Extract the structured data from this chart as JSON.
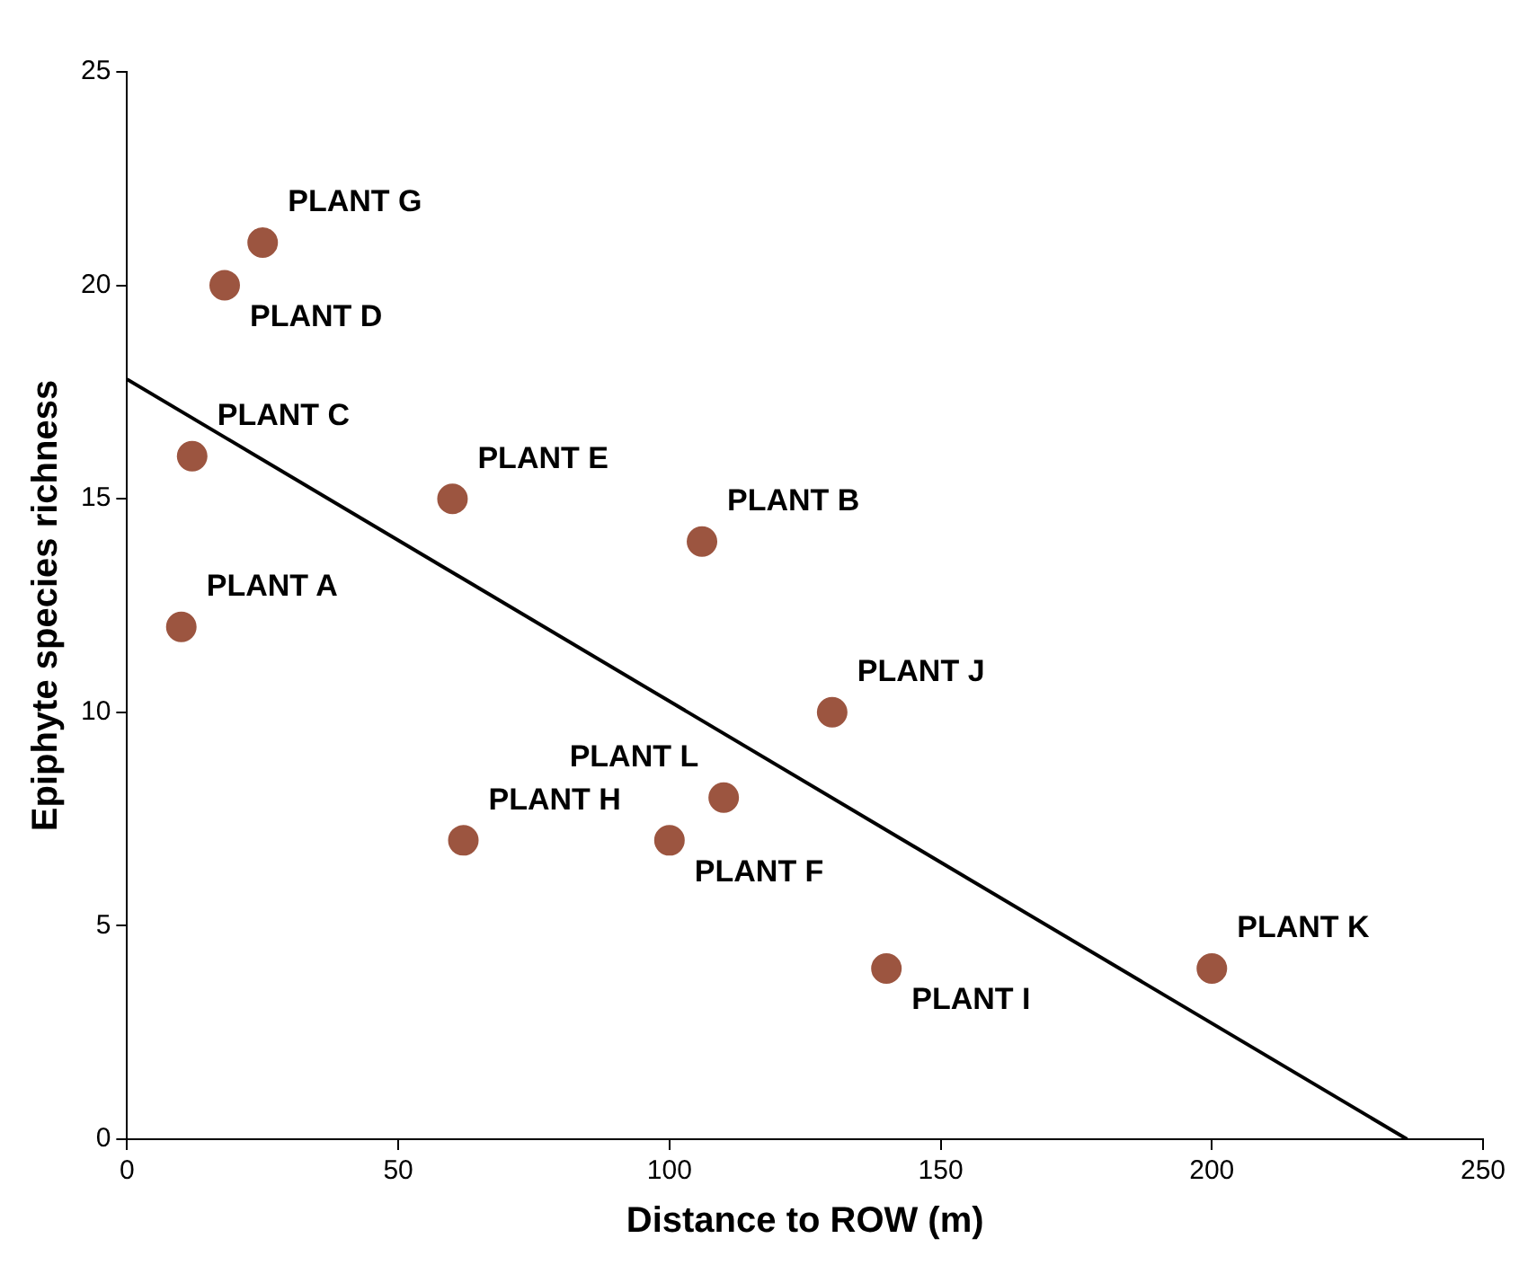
{
  "chart_data": {
    "type": "scatter",
    "xlabel": "Distance to ROW (m)",
    "ylabel": "Epiphyte species richness",
    "xlim": [
      0,
      250
    ],
    "xticks": [
      0,
      50,
      100,
      150,
      200,
      250
    ],
    "ylim": [
      0,
      25
    ],
    "yticks": [
      0,
      5,
      10,
      15,
      20,
      25
    ],
    "grid": false,
    "legend": false,
    "marker": "circle",
    "series": [
      {
        "color": "#9c5540",
        "x": [
          10,
          106,
          12,
          18,
          60,
          100,
          25,
          62,
          140,
          130,
          200,
          110
        ],
        "values": [
          12,
          14,
          16,
          20,
          15,
          7,
          21,
          7,
          4,
          10,
          4,
          8
        ]
      },
      {
        "type": "line",
        "color": "#000000",
        "x": [
          0,
          236
        ],
        "values": [
          17.8,
          0
        ],
        "marker": "none"
      }
    ],
    "annotations": [
      {
        "text": "PLANT A",
        "x": 10,
        "y": 12
      },
      {
        "text": "PLANT B",
        "x": 106,
        "y": 14
      },
      {
        "text": "PLANT C",
        "x": 12,
        "y": 16
      },
      {
        "text": "PLANT D",
        "x": 18,
        "y": 20
      },
      {
        "text": "PLANT E",
        "x": 60,
        "y": 15
      },
      {
        "text": "PLANT F",
        "x": 100,
        "y": 7
      },
      {
        "text": "PLANT G",
        "x": 25,
        "y": 21
      },
      {
        "text": "PLANT H",
        "x": 62,
        "y": 7
      },
      {
        "text": "PLANT I",
        "x": 140,
        "y": 4
      },
      {
        "text": "PLANT J",
        "x": 130,
        "y": 10
      },
      {
        "text": "PLANT K",
        "x": 200,
        "y": 4
      },
      {
        "text": "PLANT L",
        "x": 110,
        "y": 8
      }
    ]
  }
}
